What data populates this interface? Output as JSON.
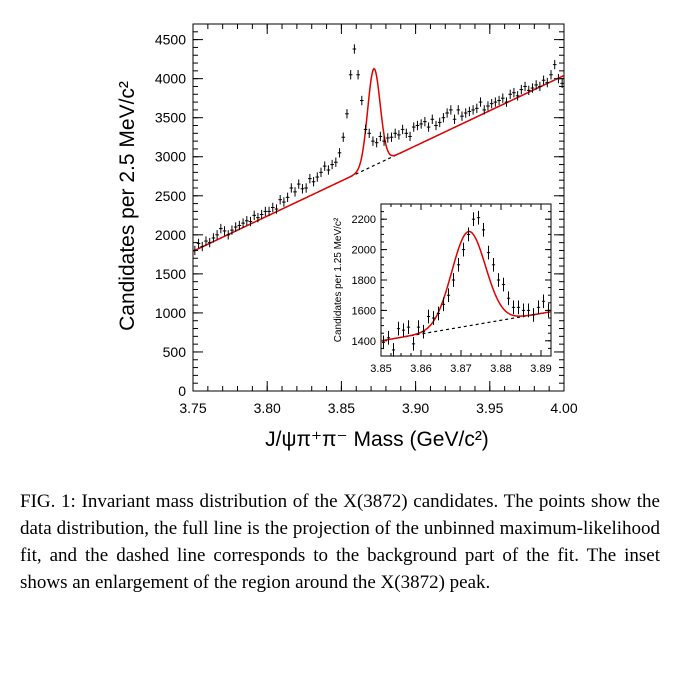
{
  "chart_data": [
    {
      "type": "scatter",
      "xlabel": "J/ψπ⁺π⁻ Mass (GeV/c²)",
      "ylabel": "Candidates per 2.5 MeV/c²",
      "xlim": [
        3.75,
        4.0
      ],
      "ylim": [
        0,
        4700
      ],
      "xticks": [
        "3.75",
        "3.80",
        "3.85",
        "3.90",
        "3.95",
        "4.00"
      ],
      "yticks": [
        "0",
        "500",
        "1000",
        "1500",
        "2000",
        "2500",
        "3000",
        "3500",
        "4000",
        "4500"
      ],
      "series": [
        {
          "style": "points with error bars",
          "x": [
            3.75125,
            3.75375,
            3.75625,
            3.75875,
            3.76125,
            3.76375,
            3.76625,
            3.76875,
            3.77125,
            3.77375,
            3.77625,
            3.77875,
            3.78125,
            3.78375,
            3.78625,
            3.78875,
            3.79125,
            3.79375,
            3.79625,
            3.79875,
            3.80125,
            3.80375,
            3.80625,
            3.80875,
            3.81125,
            3.81375,
            3.81625,
            3.81875,
            3.82125,
            3.82375,
            3.82625,
            3.82875,
            3.83125,
            3.83375,
            3.83625,
            3.83875,
            3.84125,
            3.84375,
            3.84625,
            3.84875,
            3.85125,
            3.85375,
            3.85625,
            3.85875,
            3.86125,
            3.86375,
            3.86625,
            3.86875,
            3.87125,
            3.87375,
            3.87625,
            3.87875,
            3.88125,
            3.88375,
            3.88625,
            3.88875,
            3.89125,
            3.89375,
            3.89625,
            3.89875,
            3.90125,
            3.90375,
            3.90625,
            3.90875,
            3.91125,
            3.91375,
            3.91625,
            3.91875,
            3.92125,
            3.92375,
            3.92625,
            3.92875,
            3.93125,
            3.93375,
            3.93625,
            3.93875,
            3.94125,
            3.94375,
            3.94625,
            3.94875,
            3.95125,
            3.95375,
            3.95625,
            3.95875,
            3.96125,
            3.96375,
            3.96625,
            3.96875,
            3.97125,
            3.97375,
            3.97625,
            3.97875,
            3.98125,
            3.98375,
            3.98625,
            3.98875,
            3.99125,
            3.99375,
            3.99625,
            3.99875
          ],
          "y": [
            1800,
            1890,
            1850,
            1920,
            1900,
            1960,
            2000,
            2080,
            2050,
            2000,
            2060,
            2100,
            2120,
            2150,
            2180,
            2170,
            2250,
            2220,
            2260,
            2300,
            2300,
            2350,
            2330,
            2450,
            2420,
            2480,
            2600,
            2550,
            2650,
            2590,
            2600,
            2720,
            2680,
            2740,
            2800,
            2880,
            2830,
            2900,
            2930,
            3050,
            3250,
            3550,
            4050,
            4380,
            4050,
            3720,
            3350,
            3300,
            3200,
            3180,
            3260,
            3200,
            3240,
            3250,
            3300,
            3280,
            3350,
            3300,
            3260,
            3380,
            3400,
            3420,
            3450,
            3380,
            3480,
            3400,
            3440,
            3500,
            3560,
            3600,
            3480,
            3600,
            3520,
            3560,
            3580,
            3600,
            3620,
            3700,
            3600,
            3650,
            3680,
            3700,
            3720,
            3750,
            3700,
            3800,
            3820,
            3780,
            3860,
            3900,
            3850,
            3880,
            3920,
            3900,
            3980,
            3950,
            4050,
            4180,
            4000,
            3940
          ],
          "err": 60
        },
        {
          "style": "line",
          "color": "#e00000",
          "model": "fit"
        },
        {
          "style": "dashed line",
          "color": "#000000",
          "model": "background"
        }
      ],
      "fit": {
        "background_intercept_at_3.75": 1790,
        "background_slope_per_GeV": 9000,
        "peak_mass": 3.8719,
        "peak_amplitude": 1240,
        "peak_sigma": 0.0042
      }
    },
    {
      "type": "scatter",
      "role": "inset",
      "xlabel": "",
      "ylabel": "Candidates per 1.25 MeV/c²",
      "xlim": [
        3.85,
        3.8925
      ],
      "ylim": [
        1300,
        2300
      ],
      "xticks": [
        "3.85",
        "3.86",
        "3.87",
        "3.88",
        "3.89"
      ],
      "yticks": [
        "1400",
        "1600",
        "1800",
        "2000",
        "2200"
      ],
      "series": [
        {
          "style": "points with error bars",
          "x": [
            3.850625,
            3.851875,
            3.853125,
            3.854375,
            3.855625,
            3.856875,
            3.858125,
            3.859375,
            3.860625,
            3.861875,
            3.863125,
            3.864375,
            3.865625,
            3.866875,
            3.868125,
            3.869375,
            3.870625,
            3.871875,
            3.873125,
            3.874375,
            3.875625,
            3.876875,
            3.878125,
            3.879375,
            3.880625,
            3.881875,
            3.883125,
            3.884375,
            3.885625,
            3.886875,
            3.888125,
            3.889375,
            3.890625,
            3.891875
          ],
          "y": [
            1390,
            1420,
            1340,
            1480,
            1470,
            1490,
            1380,
            1490,
            1460,
            1560,
            1550,
            1580,
            1640,
            1700,
            1800,
            1900,
            2000,
            2100,
            2200,
            2210,
            2130,
            1980,
            1900,
            1800,
            1770,
            1680,
            1620,
            1620,
            1600,
            1600,
            1570,
            1620,
            1660,
            1600
          ],
          "err": 45
        },
        {
          "style": "line",
          "color": "#e00000",
          "model": "fit"
        },
        {
          "style": "dashed line",
          "color": "#000000",
          "model": "background"
        }
      ],
      "fit": {
        "background_intercept_at_3.85": 1400,
        "background_slope_per_GeV": 4500,
        "peak_mass": 3.8719,
        "peak_amplitude": 620,
        "peak_sigma": 0.0042
      }
    }
  ],
  "caption": "FIG. 1: Invariant mass distribution of the X(3872) candidates. The points show the data distribution, the full line is the projection of the unbinned maximum-likelihood fit, and the dashed line corresponds to the background part of the fit. The inset shows an enlargement of the region around the X(3872) peak."
}
